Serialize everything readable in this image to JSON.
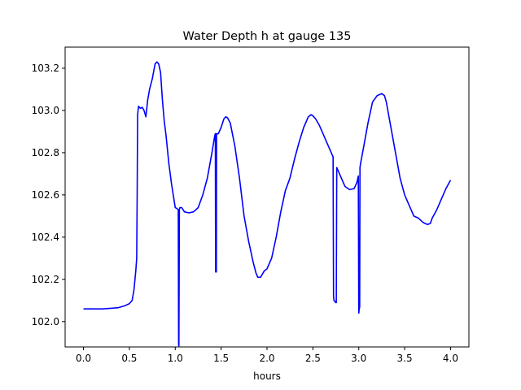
{
  "chart_data": {
    "type": "line",
    "title": "Water Depth h at gauge 135",
    "xlabel": "hours",
    "ylabel": "",
    "xlim": [
      -0.2,
      4.2
    ],
    "ylim": [
      101.88,
      103.3
    ],
    "xticks": [
      0.0,
      0.5,
      1.0,
      1.5,
      2.0,
      2.5,
      3.0,
      3.5,
      4.0
    ],
    "xtick_labels": [
      "0.0",
      "0.5",
      "1.0",
      "1.5",
      "2.0",
      "2.5",
      "3.0",
      "3.5",
      "4.0"
    ],
    "yticks": [
      102.0,
      102.2,
      102.4,
      102.6,
      102.8,
      103.0,
      103.2
    ],
    "ytick_labels": [
      "102.0",
      "102.2",
      "102.4",
      "102.6",
      "102.8",
      "103.0",
      "103.2"
    ],
    "grid": false,
    "legend": "none",
    "color": "#0000ff",
    "series": [
      {
        "x": [
          0.0,
          0.1,
          0.2,
          0.3,
          0.38,
          0.45,
          0.5,
          0.53,
          0.55,
          0.57,
          0.58,
          0.585,
          0.59,
          0.6,
          0.62,
          0.64,
          0.66,
          0.68,
          0.7,
          0.72,
          0.75,
          0.78,
          0.8,
          0.82,
          0.84,
          0.86,
          0.88,
          0.9,
          0.93,
          0.96,
          1.0,
          1.02,
          1.033,
          1.037,
          1.04,
          1.045,
          1.05,
          1.07,
          1.1,
          1.15,
          1.2,
          1.25,
          1.3,
          1.35,
          1.4,
          1.43,
          1.437,
          1.44,
          1.445,
          1.448,
          1.45,
          1.47,
          1.5,
          1.53,
          1.55,
          1.57,
          1.6,
          1.65,
          1.7,
          1.75,
          1.8,
          1.85,
          1.88,
          1.9,
          1.93,
          1.97,
          2.0,
          2.05,
          2.1,
          2.15,
          2.2,
          2.25,
          2.3,
          2.35,
          2.4,
          2.45,
          2.48,
          2.5,
          2.53,
          2.57,
          2.6,
          2.65,
          2.7,
          2.72,
          2.725,
          2.73,
          2.75,
          2.755,
          2.76,
          2.8,
          2.85,
          2.9,
          2.95,
          2.98,
          2.995,
          3.0,
          3.005,
          3.01,
          3.013,
          3.02,
          3.05,
          3.1,
          3.15,
          3.2,
          3.25,
          3.28,
          3.3,
          3.35,
          3.4,
          3.45,
          3.5,
          3.55,
          3.6,
          3.65,
          3.7,
          3.72,
          3.75,
          3.78,
          3.8,
          3.85,
          3.9,
          3.95,
          4.0
        ],
        "y": [
          102.06,
          102.06,
          102.06,
          102.063,
          102.066,
          102.075,
          102.085,
          102.1,
          102.15,
          102.24,
          102.3,
          102.6,
          102.98,
          103.02,
          103.01,
          103.015,
          103.0,
          102.97,
          103.05,
          103.1,
          103.15,
          103.22,
          103.23,
          103.22,
          103.18,
          103.05,
          102.95,
          102.88,
          102.75,
          102.65,
          102.54,
          102.535,
          102.53,
          101.89,
          101.885,
          102.53,
          102.54,
          102.54,
          102.52,
          102.515,
          102.52,
          102.54,
          102.6,
          102.68,
          102.8,
          102.88,
          102.89,
          102.235,
          102.89,
          102.235,
          102.89,
          102.89,
          102.92,
          102.96,
          102.97,
          102.965,
          102.94,
          102.83,
          102.68,
          102.5,
          102.38,
          102.28,
          102.23,
          102.21,
          102.21,
          102.24,
          102.25,
          102.3,
          102.4,
          102.52,
          102.62,
          102.68,
          102.77,
          102.85,
          102.92,
          102.97,
          102.98,
          102.975,
          102.96,
          102.93,
          102.9,
          102.85,
          102.8,
          102.78,
          102.12,
          102.1,
          102.09,
          102.09,
          102.73,
          102.69,
          102.64,
          102.625,
          102.63,
          102.66,
          102.69,
          102.04,
          102.06,
          102.07,
          102.73,
          102.75,
          102.82,
          102.94,
          103.04,
          103.07,
          103.08,
          103.07,
          103.04,
          102.92,
          102.8,
          102.68,
          102.6,
          102.55,
          102.5,
          102.49,
          102.47,
          102.465,
          102.46,
          102.465,
          102.49,
          102.53,
          102.58,
          102.63,
          102.67
        ]
      }
    ]
  }
}
